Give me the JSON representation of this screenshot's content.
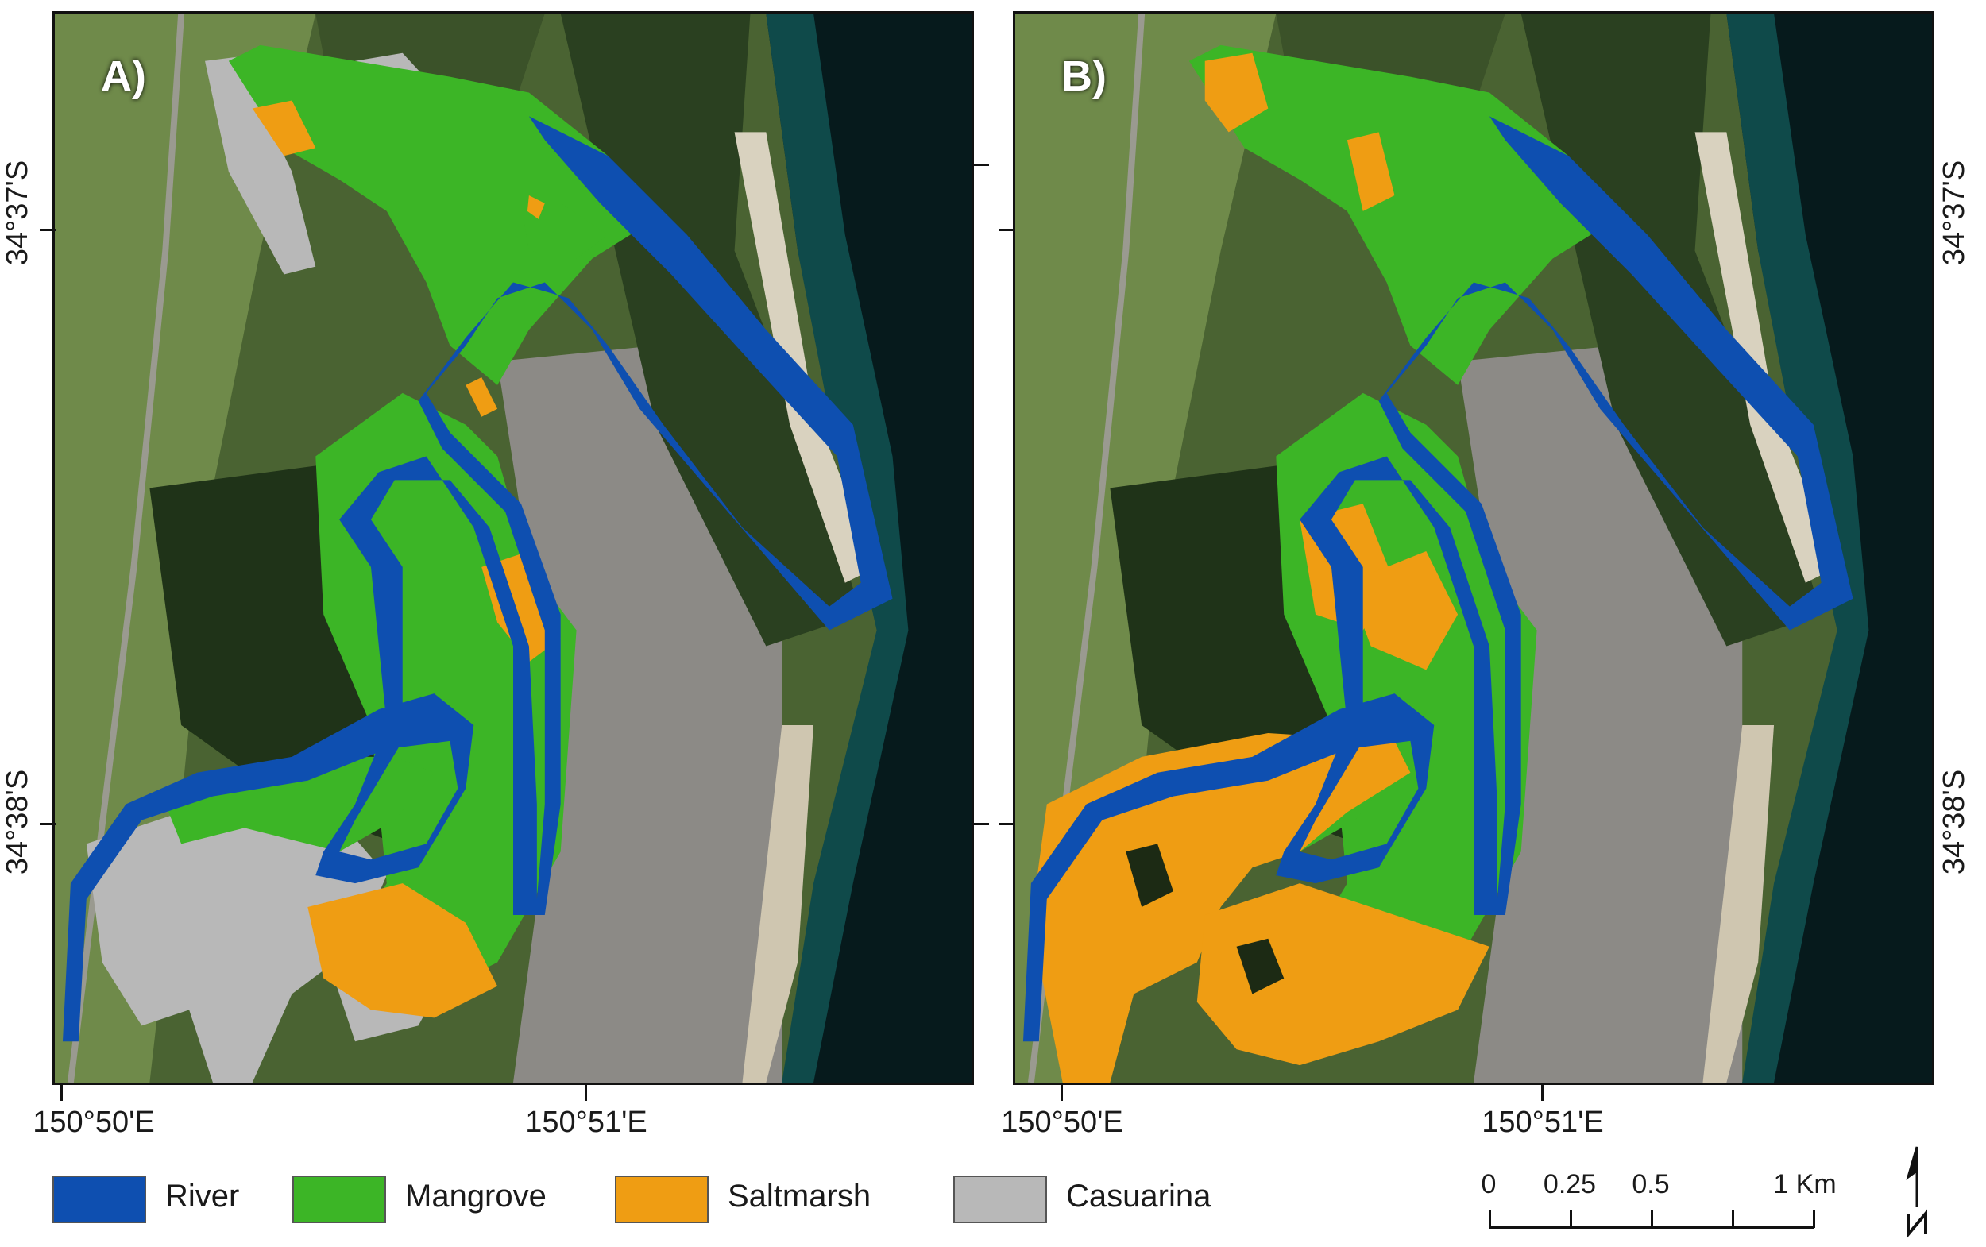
{
  "panels": [
    {
      "label": "A)"
    },
    {
      "label": "B)"
    }
  ],
  "latitude_labels": [
    "34°37'S",
    "34°38'S"
  ],
  "longitude_labels": [
    "150°50'E",
    "150°51'E"
  ],
  "legend": [
    {
      "label": "River",
      "color": "#0e4fb0"
    },
    {
      "label": "Mangrove",
      "color": "#3cb526"
    },
    {
      "label": "Saltmarsh",
      "color": "#ef9d13"
    },
    {
      "label": "Casuarina",
      "color": "#b8b8b8"
    }
  ],
  "scale_bar": {
    "labels": [
      "0",
      "0.25",
      "0.5",
      "1 Km"
    ]
  },
  "north_arrow_icon": "north-arrow-icon",
  "colors": {
    "satellite_dark_green": "#2f4423",
    "satellite_field_green": "#6f8a4a",
    "urban_gray": "#8c8a86",
    "ocean_teal": "#0f4a4a",
    "ocean_dark": "#061a1c",
    "beach_sand": "#d9d2bf"
  }
}
